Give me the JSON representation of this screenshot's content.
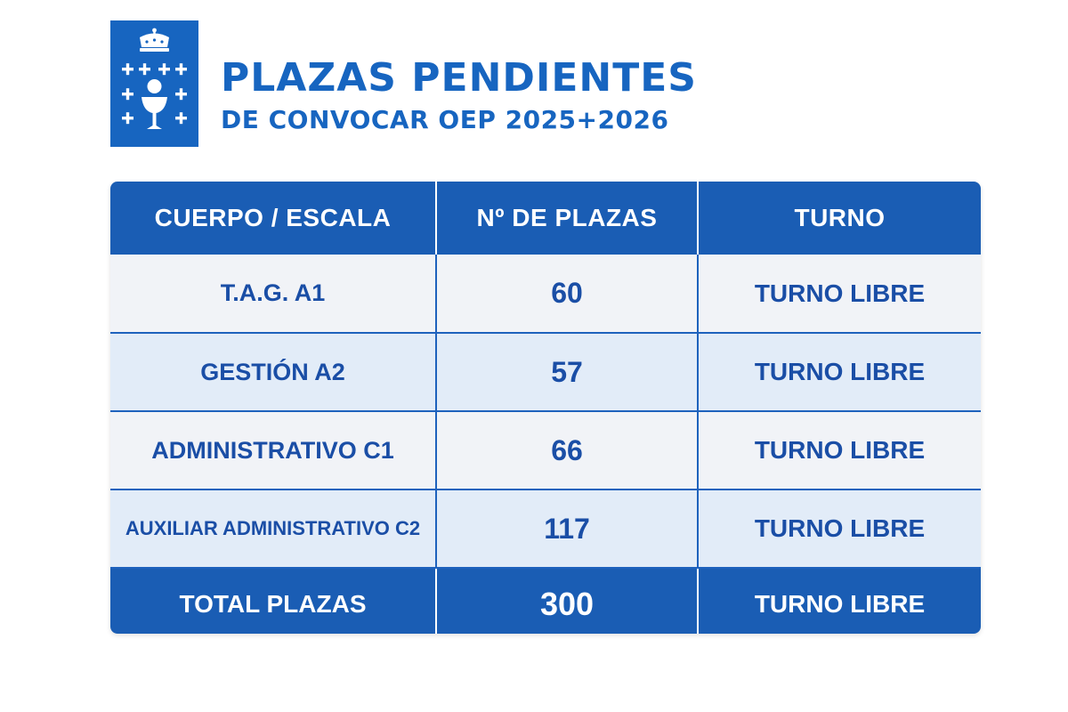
{
  "header": {
    "title_line1": "PLAZAS PENDIENTES",
    "title_line2": "DE CONVOCAR OEP 2025+2026",
    "logo_icon": "galicia-coat-of-arms-icon"
  },
  "colors": {
    "brand_blue": "#1765c0",
    "header_bg": "#1a5db4",
    "row_light": "#f1f3f7",
    "row_alt": "#e2ecf8",
    "text_blue": "#1a4ea6"
  },
  "table": {
    "headers": [
      "CUERPO / ESCALA",
      "Nº DE PLAZAS",
      "TURNO"
    ],
    "rows": [
      {
        "cuerpo": "T.A.G. A1",
        "plazas": "60",
        "turno": "TURNO LIBRE"
      },
      {
        "cuerpo": "GESTIÓN A2",
        "plazas": "57",
        "turno": "TURNO LIBRE"
      },
      {
        "cuerpo": "ADMINISTRATIVO C1",
        "plazas": "66",
        "turno": "TURNO LIBRE"
      },
      {
        "cuerpo": "AUXILIAR ADMINISTRATIVO C2",
        "plazas": "117",
        "turno": "TURNO LIBRE"
      }
    ],
    "total": {
      "cuerpo": "TOTAL PLAZAS",
      "plazas": "300",
      "turno": "TURNO LIBRE"
    }
  }
}
